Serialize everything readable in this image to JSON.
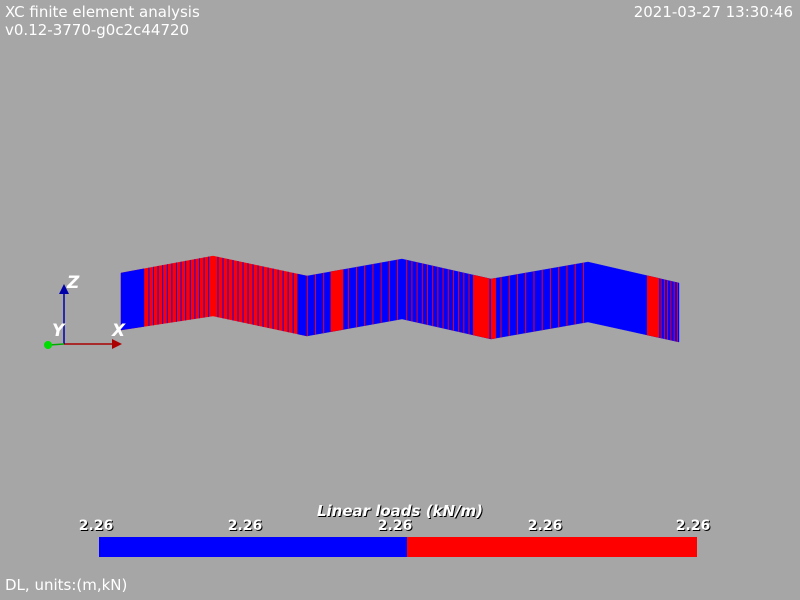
{
  "header": {
    "title": "XC finite element analysis",
    "version": "v0.12-3770-g0c2c44720",
    "timestamp": "2021-03-27 13:30:46"
  },
  "axes": {
    "x": "X",
    "y": "Y",
    "z": "Z"
  },
  "legend": {
    "title": "Linear loads (kN/m)",
    "ticks": [
      "2.26",
      "2.26",
      "2.26",
      "2.26",
      "2.26"
    ],
    "colors": [
      "#0000ff",
      "#ff0000"
    ]
  },
  "footer": {
    "caption": "DL, units:(m,kN)"
  },
  "colors": {
    "background": "#a6a6a6",
    "low": "#0000ff",
    "high": "#ff0000"
  }
}
